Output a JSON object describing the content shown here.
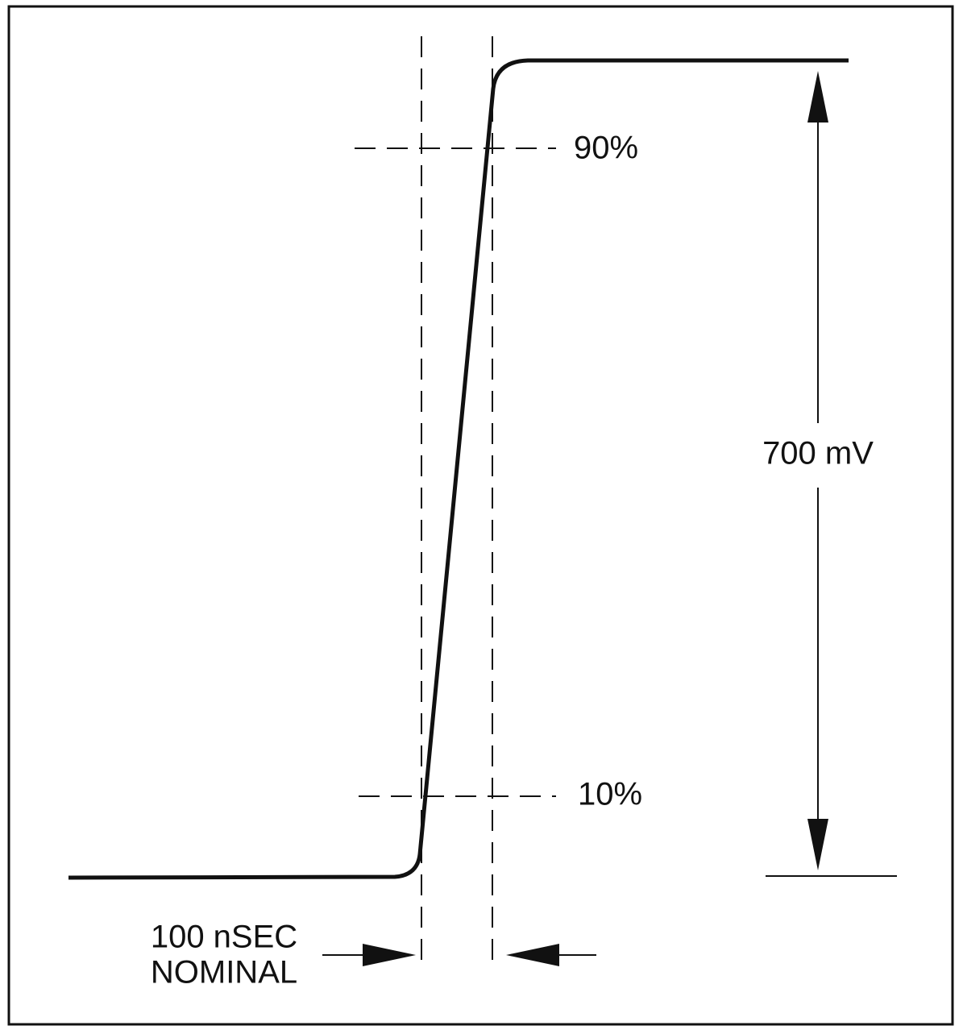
{
  "labels": {
    "upper_level": "90%",
    "lower_level": "10%",
    "amplitude": "700 mV",
    "rise_time": [
      "100 nSEC",
      "NOMINAL"
    ]
  }
}
